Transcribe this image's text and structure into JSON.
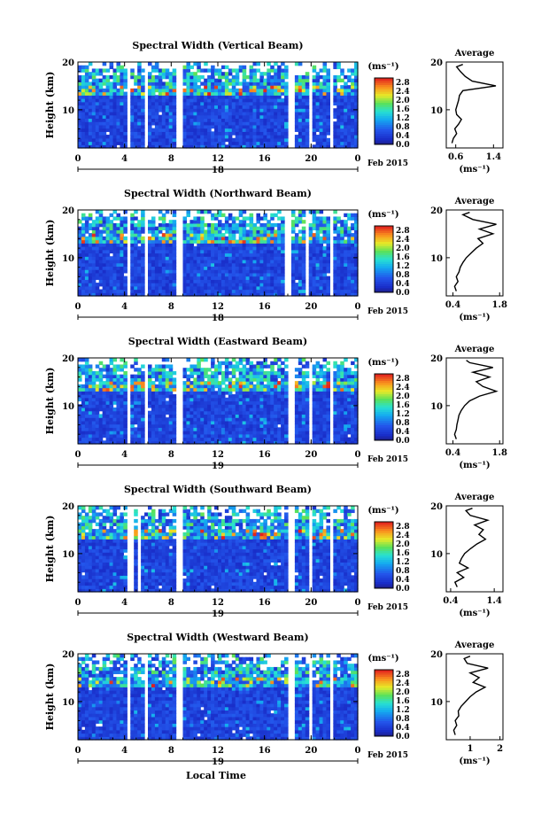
{
  "figure": {
    "xlabel": "Local Time",
    "unit_label": "(ms⁻¹)",
    "average_title": "Average",
    "date_label": "Feb 2015"
  },
  "chart_data": [
    {
      "type": "heatmap",
      "title": "Spectral Width (Vertical Beam)",
      "ylabel": "Height (km)",
      "x_ticks": [
        "0",
        "4",
        "8",
        "12",
        "16",
        "20",
        "0"
      ],
      "y_ticks": [
        "10",
        "20"
      ],
      "day_label": "18",
      "xlim": [
        0,
        24
      ],
      "ylim": [
        2,
        20
      ],
      "colorbar": {
        "ticks": [
          "0.0",
          "0.4",
          "0.8",
          "1.2",
          "1.6",
          "2.0",
          "2.4",
          "2.8"
        ],
        "range": [
          0,
          3.0
        ]
      },
      "gaps": [
        [
          4.2,
          4.6
        ],
        [
          5.0,
          5.2
        ],
        [
          5.6,
          5.9
        ],
        [
          8.4,
          9.1
        ],
        [
          18.0,
          18.5
        ],
        [
          19.7,
          20.0
        ],
        [
          21.7,
          22.0
        ]
      ],
      "profile": {
        "xlim": [
          0.4,
          1.6
        ],
        "x_ticks": [
          "0.6",
          "1.4"
        ],
        "x_tick_values": [
          0.6,
          1.4
        ],
        "points": [
          [
            0.52,
            3
          ],
          [
            0.55,
            4
          ],
          [
            0.62,
            5
          ],
          [
            0.58,
            6
          ],
          [
            0.66,
            7
          ],
          [
            0.72,
            8
          ],
          [
            0.62,
            9
          ],
          [
            0.6,
            10
          ],
          [
            0.63,
            11
          ],
          [
            0.66,
            12
          ],
          [
            0.68,
            13
          ],
          [
            0.75,
            14
          ],
          [
            1.45,
            15
          ],
          [
            0.95,
            16
          ],
          [
            0.8,
            17
          ],
          [
            0.7,
            18
          ],
          [
            0.62,
            19
          ],
          [
            0.75,
            19.5
          ]
        ]
      }
    },
    {
      "type": "heatmap",
      "title": "Spectral Width (Northward Beam)",
      "ylabel": "Height (km)",
      "x_ticks": [
        "0",
        "4",
        "8",
        "12",
        "16",
        "20",
        "0"
      ],
      "y_ticks": [
        "10",
        "20"
      ],
      "day_label": "18",
      "xlim": [
        0,
        24
      ],
      "ylim": [
        2,
        20
      ],
      "colorbar": {
        "ticks": [
          "0.0",
          "0.4",
          "0.8",
          "1.2",
          "1.6",
          "2.0",
          "2.4",
          "2.8"
        ],
        "range": [
          0,
          3.0
        ]
      },
      "gaps": [
        [
          4.2,
          4.6
        ],
        [
          5.0,
          5.2
        ],
        [
          5.6,
          5.9
        ],
        [
          8.4,
          9.1
        ],
        [
          17.7,
          18.2
        ],
        [
          19.6,
          19.9
        ],
        [
          21.7,
          22.0
        ]
      ],
      "profile": {
        "xlim": [
          0.2,
          1.9
        ],
        "x_ticks": [
          "0.4",
          "1.8"
        ],
        "x_tick_values": [
          0.4,
          1.8
        ],
        "points": [
          [
            0.5,
            3
          ],
          [
            0.45,
            4
          ],
          [
            0.55,
            5
          ],
          [
            0.5,
            6
          ],
          [
            0.58,
            7
          ],
          [
            0.62,
            8
          ],
          [
            0.7,
            9
          ],
          [
            0.8,
            10
          ],
          [
            0.95,
            11
          ],
          [
            1.1,
            12
          ],
          [
            1.3,
            13
          ],
          [
            1.15,
            14
          ],
          [
            1.6,
            15
          ],
          [
            1.2,
            16
          ],
          [
            1.7,
            17
          ],
          [
            1.0,
            18
          ],
          [
            0.7,
            19
          ],
          [
            0.9,
            19.5
          ]
        ]
      }
    },
    {
      "type": "heatmap",
      "title": "Spectral Width (Eastward Beam)",
      "ylabel": "Height (km)",
      "x_ticks": [
        "0",
        "4",
        "8",
        "12",
        "16",
        "20",
        "0"
      ],
      "y_ticks": [
        "10",
        "20"
      ],
      "day_label": "19",
      "xlim": [
        0,
        24
      ],
      "ylim": [
        2,
        20
      ],
      "colorbar": {
        "ticks": [
          "0.0",
          "0.4",
          "0.8",
          "1.2",
          "1.6",
          "2.0",
          "2.4",
          "2.8"
        ],
        "range": [
          0,
          3.0
        ]
      },
      "gaps": [
        [
          4.2,
          4.6
        ],
        [
          5.0,
          5.2
        ],
        [
          5.6,
          5.9
        ],
        [
          8.4,
          9.1
        ],
        [
          18.0,
          18.5
        ],
        [
          19.7,
          20.0
        ],
        [
          21.7,
          22.0
        ]
      ],
      "profile": {
        "xlim": [
          0.2,
          1.9
        ],
        "x_ticks": [
          "0.4",
          "1.8"
        ],
        "x_tick_values": [
          0.4,
          1.8
        ],
        "points": [
          [
            0.5,
            3
          ],
          [
            0.45,
            4
          ],
          [
            0.5,
            5
          ],
          [
            0.52,
            6
          ],
          [
            0.55,
            7
          ],
          [
            0.58,
            8
          ],
          [
            0.65,
            9
          ],
          [
            0.75,
            10
          ],
          [
            0.9,
            11
          ],
          [
            1.2,
            12
          ],
          [
            1.7,
            13
          ],
          [
            1.3,
            14
          ],
          [
            1.1,
            15
          ],
          [
            1.5,
            16
          ],
          [
            1.0,
            17
          ],
          [
            1.6,
            18
          ],
          [
            0.9,
            19
          ],
          [
            0.8,
            19.5
          ]
        ]
      }
    },
    {
      "type": "heatmap",
      "title": "Spectral Width (Southward Beam)",
      "ylabel": "Height (km)",
      "x_ticks": [
        "0",
        "4",
        "8",
        "12",
        "16",
        "20",
        "0"
      ],
      "y_ticks": [
        "10",
        "20"
      ],
      "day_label": "19",
      "xlim": [
        0,
        24
      ],
      "ylim": [
        2,
        20
      ],
      "colorbar": {
        "ticks": [
          "0.0",
          "0.4",
          "0.8",
          "1.2",
          "1.6",
          "2.0",
          "2.4",
          "2.8"
        ],
        "range": [
          0,
          3.0
        ]
      },
      "gaps": [
        [
          4.3,
          4.7
        ],
        [
          5.1,
          5.3
        ],
        [
          8.3,
          9.1
        ],
        [
          18.0,
          18.5
        ],
        [
          19.7,
          20.0
        ],
        [
          21.6,
          22.0
        ]
      ],
      "profile": {
        "xlim": [
          0.3,
          1.6
        ],
        "x_ticks": [
          "0.4",
          "1.4"
        ],
        "x_tick_values": [
          0.4,
          1.4
        ],
        "points": [
          [
            0.55,
            3
          ],
          [
            0.5,
            4
          ],
          [
            0.7,
            5
          ],
          [
            0.55,
            6
          ],
          [
            0.8,
            7
          ],
          [
            0.6,
            8
          ],
          [
            0.65,
            9
          ],
          [
            0.72,
            10
          ],
          [
            0.85,
            11
          ],
          [
            1.0,
            12
          ],
          [
            1.2,
            13
          ],
          [
            1.05,
            14
          ],
          [
            1.15,
            15
          ],
          [
            0.95,
            16
          ],
          [
            1.25,
            17
          ],
          [
            0.85,
            18
          ],
          [
            0.75,
            19
          ],
          [
            0.9,
            19.5
          ]
        ]
      }
    },
    {
      "type": "heatmap",
      "title": "Spectral Width (Westward Beam)",
      "ylabel": "Height (km)",
      "x_ticks": [
        "0",
        "4",
        "8",
        "12",
        "16",
        "20",
        "0"
      ],
      "y_ticks": [
        "10",
        "20"
      ],
      "day_label": "19",
      "xlim": [
        0,
        24
      ],
      "ylim": [
        2,
        20
      ],
      "colorbar": {
        "ticks": [
          "0.0",
          "0.4",
          "0.8",
          "1.2",
          "1.6",
          "2.0",
          "2.4",
          "2.8"
        ],
        "range": [
          0,
          3.0
        ]
      },
      "gaps": [
        [
          4.2,
          4.6
        ],
        [
          5.0,
          5.2
        ],
        [
          5.6,
          5.9
        ],
        [
          8.4,
          9.1
        ],
        [
          18.0,
          18.5
        ],
        [
          19.7,
          20.0
        ],
        [
          21.7,
          22.0
        ]
      ],
      "profile": {
        "xlim": [
          0.2,
          2.1
        ],
        "x_ticks": [
          "1",
          "2"
        ],
        "x_tick_values": [
          1,
          2
        ],
        "points": [
          [
            0.5,
            3
          ],
          [
            0.45,
            4
          ],
          [
            0.55,
            5
          ],
          [
            0.5,
            6
          ],
          [
            0.62,
            7
          ],
          [
            0.6,
            8
          ],
          [
            0.7,
            9
          ],
          [
            0.85,
            10
          ],
          [
            1.0,
            11
          ],
          [
            1.2,
            12
          ],
          [
            1.5,
            13
          ],
          [
            1.1,
            14
          ],
          [
            1.3,
            15
          ],
          [
            1.0,
            16
          ],
          [
            1.6,
            17
          ],
          [
            0.9,
            18
          ],
          [
            0.8,
            19
          ],
          [
            1.0,
            19.5
          ]
        ]
      }
    }
  ]
}
